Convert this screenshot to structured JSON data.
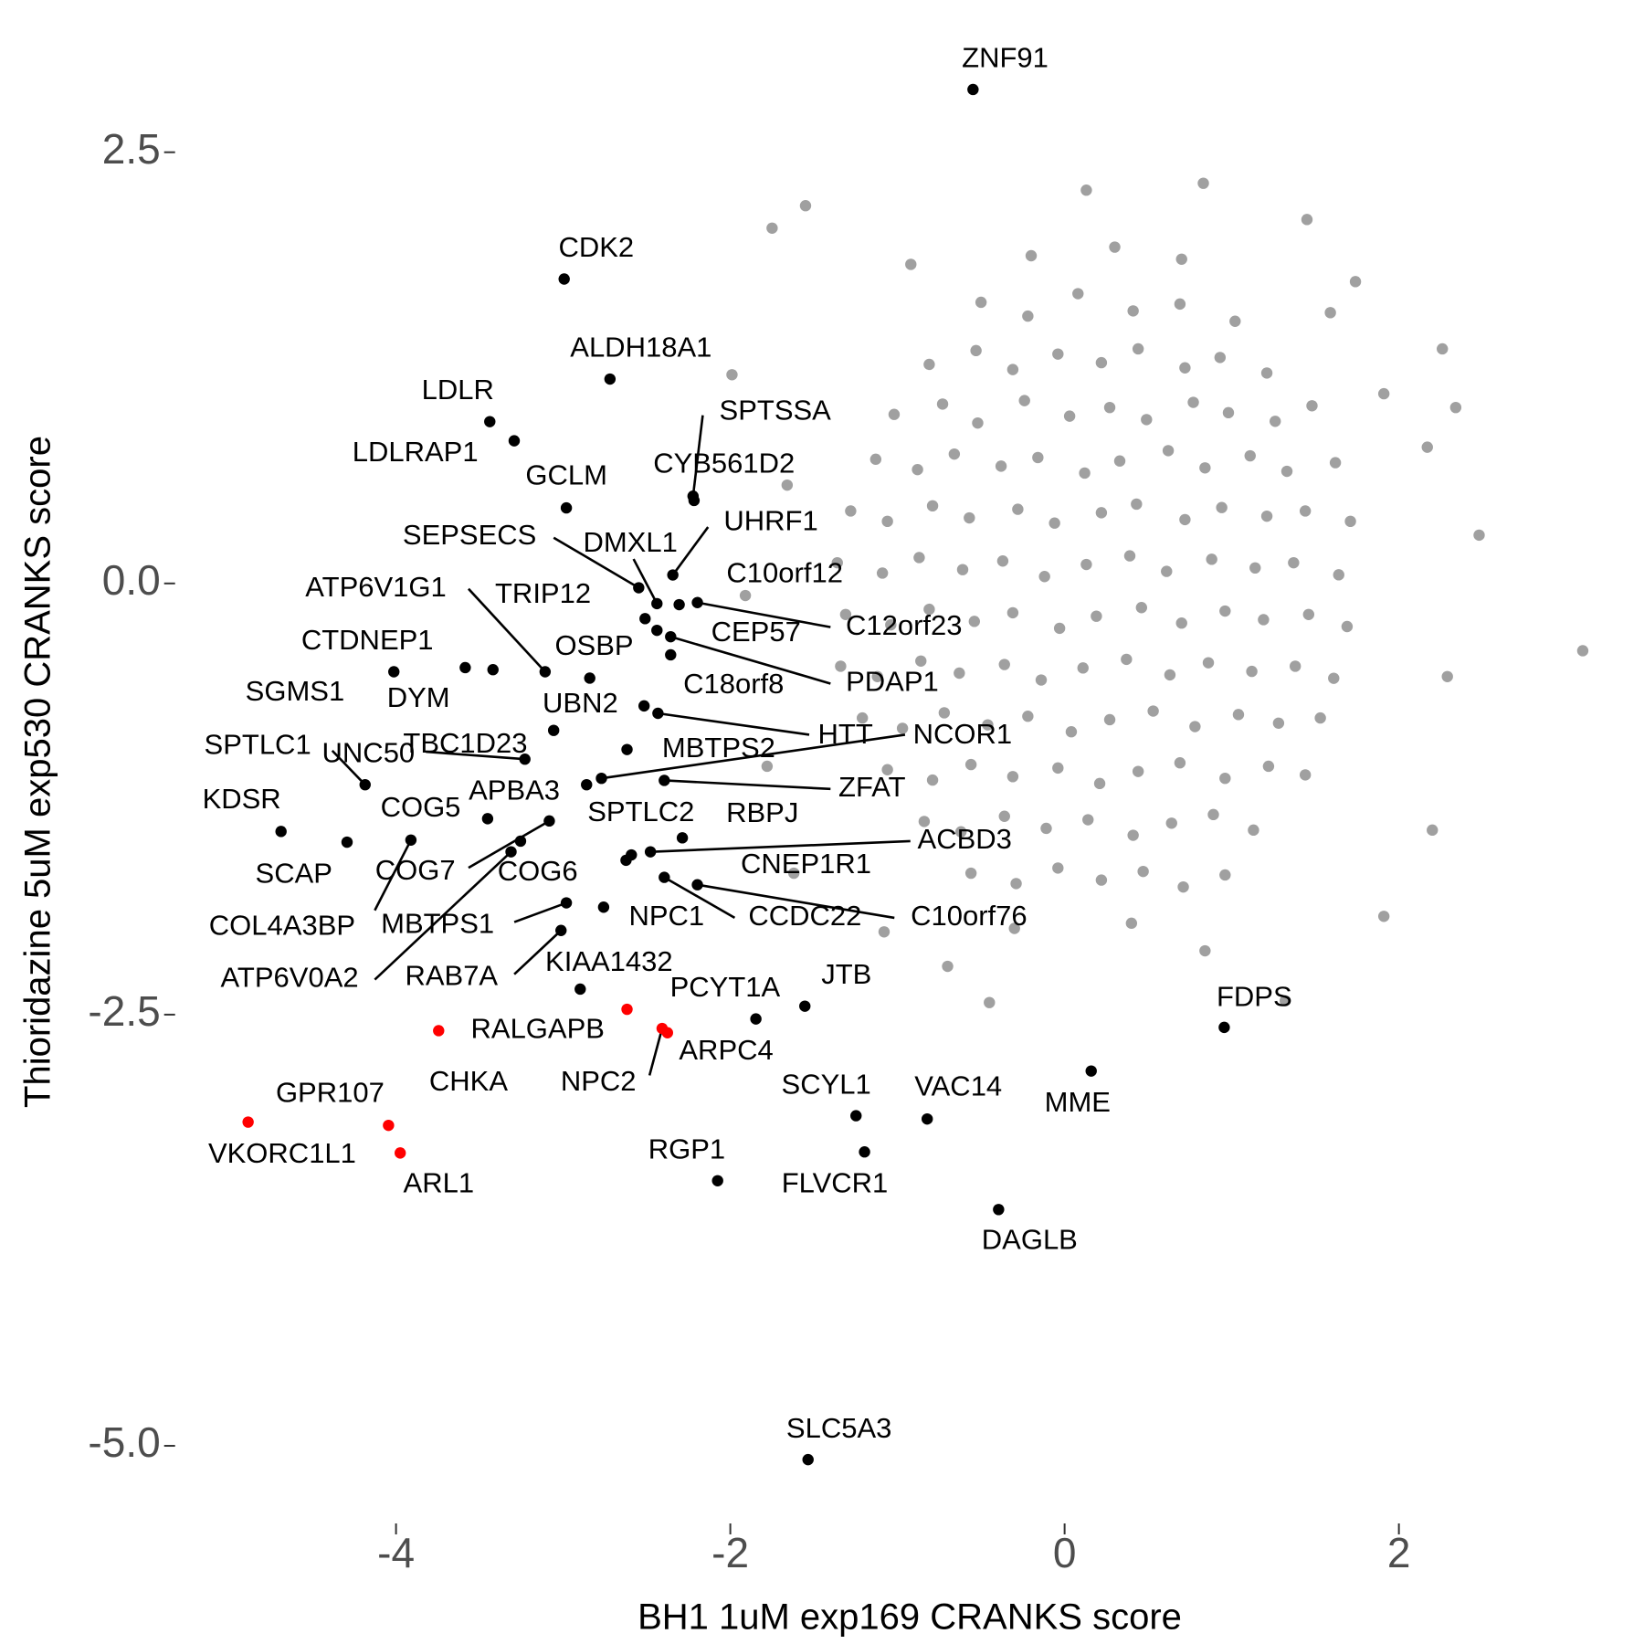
{
  "chart_data": {
    "type": "scatter",
    "xlabel": "BH1 1uM exp169 CRANKS score",
    "ylabel": "Thioridazine 5uM exp530 CRANKS score",
    "xlim": [
      -5.3,
      3.45
    ],
    "ylim": [
      -5.45,
      3.2
    ],
    "xticks": [
      -4,
      -2,
      0,
      2
    ],
    "yticks": [
      2.5,
      {
        "value": 0,
        "label": "0.0"
      },
      -2.5,
      {
        "value": -5,
        "label": "-5.0"
      }
    ],
    "grid": false,
    "series": [
      {
        "color": "#a0a0a0",
        "x": [
          -0.5,
          -0.22,
          0.08,
          0.41,
          0.69,
          1.02,
          -0.81,
          -0.53,
          -0.31,
          -0.04,
          0.22,
          0.44,
          0.72,
          0.93,
          1.21,
          -1.02,
          -0.73,
          -0.52,
          -0.24,
          0.03,
          0.27,
          0.49,
          0.77,
          0.98,
          1.26,
          1.48,
          -1.13,
          -0.88,
          -0.66,
          -0.38,
          -0.16,
          0.12,
          0.33,
          0.62,
          0.84,
          1.11,
          1.33,
          1.62,
          -1.28,
          -1.06,
          -0.79,
          -0.57,
          -0.28,
          -0.06,
          0.22,
          0.43,
          0.72,
          0.94,
          1.21,
          1.44,
          1.71,
          -1.36,
          -1.09,
          -0.87,
          -0.61,
          -0.37,
          -0.12,
          0.13,
          0.39,
          0.61,
          0.88,
          1.14,
          1.37,
          1.64,
          -1.31,
          -1.04,
          -0.81,
          -0.54,
          -0.31,
          -0.03,
          0.19,
          0.46,
          0.7,
          0.96,
          1.19,
          1.46,
          1.69,
          -1.34,
          -1.12,
          -0.86,
          -0.63,
          -0.36,
          -0.14,
          0.11,
          0.37,
          0.63,
          0.86,
          1.12,
          1.38,
          1.61,
          -1.21,
          -0.97,
          -0.72,
          -0.46,
          -0.22,
          0.04,
          0.27,
          0.53,
          0.78,
          1.04,
          1.28,
          1.53,
          -1.06,
          -0.79,
          -0.56,
          -0.31,
          -0.04,
          0.21,
          0.44,
          0.69,
          0.96,
          1.22,
          1.44,
          -0.84,
          -0.62,
          -0.36,
          -0.11,
          0.14,
          0.41,
          0.64,
          0.89,
          1.13,
          -0.56,
          -0.29,
          -0.04,
          0.22,
          0.47,
          0.71,
          0.96,
          -0.2,
          0.3,
          0.7,
          -0.3,
          0.4,
          3.1,
          2.48,
          2.34,
          2.26,
          1.74,
          1.45,
          0.83,
          0.13,
          -1.55,
          -1.75,
          -0.92,
          -1.99,
          -1.66,
          2.29,
          2.2,
          1.91,
          1.32,
          0.84,
          -0.45,
          -0.7,
          -1.08,
          -1.62,
          -1.78,
          -1.91,
          2.17,
          1.59,
          1.91
        ],
        "y": [
          1.63,
          1.55,
          1.68,
          1.58,
          1.62,
          1.52,
          1.27,
          1.35,
          1.24,
          1.33,
          1.28,
          1.36,
          1.25,
          1.31,
          1.22,
          0.98,
          1.04,
          0.93,
          1.06,
          0.97,
          1.02,
          0.95,
          1.05,
          0.99,
          0.94,
          1.03,
          0.72,
          0.66,
          0.75,
          0.68,
          0.73,
          0.64,
          0.71,
          0.77,
          0.67,
          0.74,
          0.65,
          0.7,
          0.42,
          0.36,
          0.45,
          0.38,
          0.43,
          0.35,
          0.41,
          0.46,
          0.37,
          0.44,
          0.39,
          0.42,
          0.36,
          0.12,
          0.06,
          0.15,
          0.08,
          0.13,
          0.04,
          0.11,
          0.16,
          0.07,
          0.14,
          0.09,
          0.12,
          0.05,
          -0.18,
          -0.24,
          -0.15,
          -0.22,
          -0.17,
          -0.26,
          -0.19,
          -0.14,
          -0.23,
          -0.16,
          -0.21,
          -0.18,
          -0.25,
          -0.48,
          -0.54,
          -0.45,
          -0.52,
          -0.47,
          -0.56,
          -0.49,
          -0.44,
          -0.53,
          -0.46,
          -0.51,
          -0.48,
          -0.55,
          -0.78,
          -0.84,
          -0.75,
          -0.82,
          -0.77,
          -0.86,
          -0.79,
          -0.74,
          -0.83,
          -0.76,
          -0.81,
          -0.78,
          -1.08,
          -1.14,
          -1.05,
          -1.12,
          -1.07,
          -1.16,
          -1.09,
          -1.04,
          -1.13,
          -1.06,
          -1.11,
          -1.38,
          -1.44,
          -1.35,
          -1.42,
          -1.37,
          -1.46,
          -1.39,
          -1.34,
          -1.43,
          -1.68,
          -1.74,
          -1.65,
          -1.72,
          -1.67,
          -1.76,
          -1.69,
          1.9,
          1.95,
          1.88,
          -2.0,
          -1.97,
          -0.39,
          0.28,
          1.02,
          1.36,
          1.75,
          2.11,
          2.32,
          2.28,
          2.19,
          2.06,
          1.85,
          1.21,
          0.57,
          -0.54,
          -1.43,
          -1.93,
          -2.42,
          -2.13,
          -2.43,
          -2.22,
          -2.02,
          -1.68,
          -1.06,
          -0.07,
          0.79,
          1.57,
          1.1
        ]
      },
      {
        "color": "#000000",
        "labels": [
          "ZNF91",
          "CDK2",
          "ALDH18A1",
          "LDLR",
          "LDLRAP1",
          "GCLM",
          "SPTSSA",
          "CYB561D2",
          "UHRF1",
          "SEPSECS",
          "DMXL1",
          "C10orf12",
          "C12orf23",
          "TRIP12",
          "CEP57",
          "PDAP1",
          "C18orf8",
          "ATP6V1G1",
          "OSBP",
          "CTDNEP1",
          "SGMS1",
          "DYM",
          "UBN2",
          "HTT",
          "TBC1D23",
          "MBTPS2",
          "UNC50",
          "NCOR1",
          "APBA3",
          "ZFAT",
          "SPTLC1",
          "COG5",
          "COG7",
          "ATP6V0A2",
          "COG6",
          "KDSR",
          "SCAP",
          "COL4A3BP",
          "SPTLC2",
          "RBPJ",
          "ACBD3",
          "CNEP1R1",
          "CCDC22",
          "C10orf76",
          "MBTPS1",
          "NPC1",
          "RAB7A",
          "KIAA1432",
          "PCYT1A",
          "JTB",
          "FDPS",
          "MME",
          "SCYL1",
          "VAC14",
          "FLVCR1",
          "RGP1",
          "DAGLB",
          "SLC5A3"
        ],
        "x": [
          -0.548,
          -2.994,
          -2.72,
          -3.439,
          -3.293,
          -2.981,
          -2.223,
          -2.217,
          -2.344,
          -2.548,
          -2.439,
          -2.306,
          -2.197,
          -2.51,
          -2.439,
          -2.357,
          -2.357,
          -3.108,
          -2.841,
          -4.013,
          -3.586,
          -3.42,
          -2.516,
          -2.433,
          -3.057,
          -2.618,
          -3.229,
          -2.771,
          -2.86,
          -2.395,
          -4.185,
          -3.452,
          -3.083,
          -3.312,
          -3.255,
          -4.688,
          -4.293,
          -3.911,
          -2.624,
          -2.287,
          -2.478,
          -2.592,
          -2.395,
          -2.197,
          -2.981,
          -2.758,
          -3.013,
          -2.898,
          -1.847,
          -1.554,
          0.955,
          0.159,
          -1.248,
          -0.822,
          -1.197,
          -2.076,
          -0.395,
          -1.535
        ],
        "y": [
          2.864,
          1.765,
          1.185,
          0.938,
          0.827,
          0.438,
          0.506,
          0.481,
          0.049,
          -0.025,
          -0.117,
          -0.123,
          -0.111,
          -0.204,
          -0.272,
          -0.309,
          -0.414,
          -0.512,
          -0.549,
          -0.512,
          -0.488,
          -0.5,
          -0.71,
          -0.753,
          -0.852,
          -0.963,
          -1.019,
          -1.13,
          -1.167,
          -1.142,
          -1.167,
          -1.364,
          -1.377,
          -1.556,
          -1.494,
          -1.438,
          -1.5,
          -1.488,
          -1.605,
          -1.475,
          -1.556,
          -1.574,
          -1.704,
          -1.747,
          -1.852,
          -1.877,
          -2.012,
          -2.352,
          -2.525,
          -2.451,
          -2.574,
          -2.827,
          -3.086,
          -3.105,
          -3.296,
          -3.463,
          -3.63,
          -5.08
        ]
      },
      {
        "color": "#ff0000",
        "labels": [
          "RALGAPB",
          "CHKA",
          "NPC2",
          "ARPC4",
          "GPR107",
          "VKORC1L1",
          "ARL1"
        ],
        "x": [
          -2.618,
          -3.745,
          -2.408,
          -2.376,
          -4.045,
          -4.885,
          -3.975
        ],
        "y": [
          -2.469,
          -2.593,
          -2.58,
          -2.605,
          -3.142,
          -3.123,
          -3.302
        ]
      }
    ]
  }
}
